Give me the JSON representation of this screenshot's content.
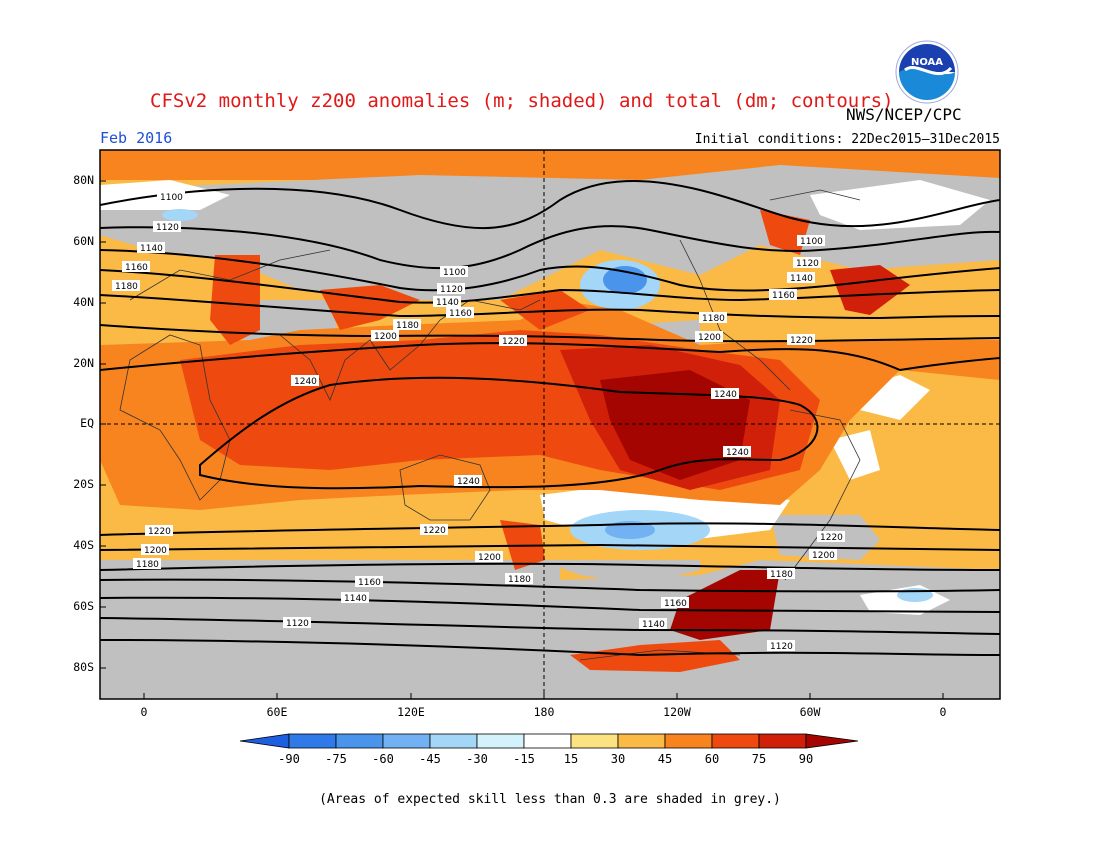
{
  "title": "CFSv2 monthly z200 anomalies (m; shaded) and total (dm; contours)",
  "month": "Feb 2016",
  "initial_conditions": "Initial conditions: 22Dec2015–31Dec2015",
  "agency": "NWS/NCEP/CPC",
  "logo_text": "NOAA",
  "footer": "(Areas of expected skill less than 0.3 are shaded in grey.)",
  "lat_labels": [
    "80N",
    "60N",
    "40N",
    "20N",
    "EQ",
    "20S",
    "40S",
    "60S",
    "80S"
  ],
  "lon_labels": [
    "0",
    "60E",
    "120E",
    "180",
    "120W",
    "60W",
    "0"
  ],
  "colorbar": {
    "labels": [
      "-90",
      "-75",
      "-60",
      "-45",
      "-30",
      "-15",
      "15",
      "30",
      "45",
      "60",
      "75",
      "90"
    ],
    "colors": [
      "#1e5ee0",
      "#2f7ae8",
      "#4a94ec",
      "#72b2f2",
      "#a4d6f7",
      "#d4f2fb",
      "#ffffff",
      "#fce281",
      "#fbba45",
      "#f8841f",
      "#ee4a0f",
      "#d0200a",
      "#a50500"
    ]
  },
  "contour_labels": [
    "1100",
    "1120",
    "1140",
    "1160",
    "1180",
    "1200",
    "1220",
    "1240"
  ],
  "colors": {
    "skill_grey": "#c0c0c0",
    "title_red": "#e01818",
    "month_blue": "#1e4fd6"
  }
}
